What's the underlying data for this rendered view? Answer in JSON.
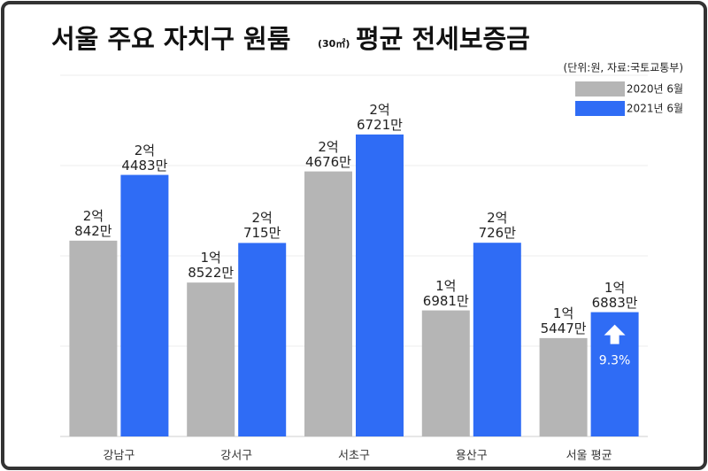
{
  "chart_data": {
    "type": "bar",
    "title": [
      "서울 주요 자치구 원룸",
      "(30㎡)",
      "평균 전세보증금"
    ],
    "unit_note": "(단위:원, 자료:국토교통부)",
    "categories": [
      "강남구",
      "강서구",
      "서초구",
      "용산구",
      "서울 평균"
    ],
    "series": [
      {
        "name": "2020년 6월",
        "color": "#b5b5b5",
        "values": [
          20842,
          18522,
          24676,
          16981,
          15447
        ],
        "value_labels": [
          "2억\n842만",
          "1억\n8522만",
          "2억\n4676만",
          "1억\n6981만",
          "1억\n5447만"
        ]
      },
      {
        "name": "2021년 6월",
        "color": "#2f6cf5",
        "values": [
          24483,
          20715,
          26721,
          20726,
          16883
        ],
        "value_labels": [
          "2억\n4483만",
          "2억\n715만",
          "2억\n6721만",
          "2억\n726만",
          "1억\n6883만"
        ]
      }
    ],
    "annotation": "9.3%",
    "ylim": [
      10000,
      30000
    ],
    "yticks": [
      10000,
      15000,
      20000,
      25000,
      30000
    ],
    "grid": true
  }
}
